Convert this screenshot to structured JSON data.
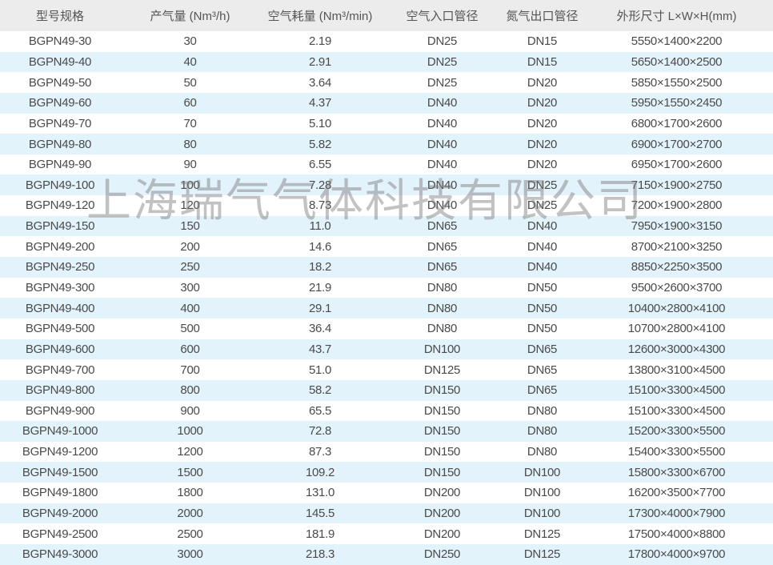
{
  "headers": [
    "型号规格",
    "产气量 (Nm³/h)",
    "空气耗量 (Nm³/min)",
    "空气入口管径",
    "氮气出口管径",
    "外形尺寸 L×W×H(mm)"
  ],
  "rows": [
    [
      "BGPN49-30",
      "30",
      "2.19",
      "DN25",
      "DN15",
      "5550×1400×2200"
    ],
    [
      "BGPN49-40",
      "40",
      "2.91",
      "DN25",
      "DN15",
      "5650×1400×2500"
    ],
    [
      "BGPN49-50",
      "50",
      "3.64",
      "DN25",
      "DN20",
      "5850×1550×2500"
    ],
    [
      "BGPN49-60",
      "60",
      "4.37",
      "DN40",
      "DN20",
      "5950×1550×2450"
    ],
    [
      "BGPN49-70",
      "70",
      "5.10",
      "DN40",
      "DN20",
      "6800×1700×2600"
    ],
    [
      "BGPN49-80",
      "80",
      "5.82",
      "DN40",
      "DN20",
      "6900×1700×2700"
    ],
    [
      "BGPN49-90",
      "90",
      "6.55",
      "DN40",
      "DN20",
      "6950×1700×2600"
    ],
    [
      "BGPN49-100",
      "100",
      "7.28",
      "DN40",
      "DN25",
      "7150×1900×2750"
    ],
    [
      "BGPN49-120",
      "120",
      "8.73",
      "DN40",
      "DN25",
      "7200×1900×2800"
    ],
    [
      "BGPN49-150",
      "150",
      "11.0",
      "DN65",
      "DN40",
      "7950×1900×3150"
    ],
    [
      "BGPN49-200",
      "200",
      "14.6",
      "DN65",
      "DN40",
      "8700×2100×3250"
    ],
    [
      "BGPN49-250",
      "250",
      "18.2",
      "DN65",
      "DN40",
      "8850×2250×3500"
    ],
    [
      "BGPN49-300",
      "300",
      "21.9",
      "DN80",
      "DN50",
      "9500×2600×3700"
    ],
    [
      "BGPN49-400",
      "400",
      "29.1",
      "DN80",
      "DN50",
      "10400×2800×4100"
    ],
    [
      "BGPN49-500",
      "500",
      "36.4",
      "DN80",
      "DN50",
      "10700×2800×4100"
    ],
    [
      "BGPN49-600",
      "600",
      "43.7",
      "DN100",
      "DN65",
      "12600×3000×4300"
    ],
    [
      "BGPN49-700",
      "700",
      "51.0",
      "DN125",
      "DN65",
      "13800×3100×4500"
    ],
    [
      "BGPN49-800",
      "800",
      "58.2",
      "DN150",
      "DN65",
      "15100×3300×4500"
    ],
    [
      "BGPN49-900",
      "900",
      "65.5",
      "DN150",
      "DN80",
      "15100×3300×4500"
    ],
    [
      "BGPN49-1000",
      "1000",
      "72.8",
      "DN150",
      "DN80",
      "15200×3300×5500"
    ],
    [
      "BGPN49-1200",
      "1200",
      "87.3",
      "DN150",
      "DN80",
      "15400×3300×5500"
    ],
    [
      "BGPN49-1500",
      "1500",
      "109.2",
      "DN150",
      "DN100",
      "15800×3300×6700"
    ],
    [
      "BGPN49-1800",
      "1800",
      "131.0",
      "DN200",
      "DN100",
      "16200×3500×7700"
    ],
    [
      "BGPN49-2000",
      "2000",
      "145.5",
      "DN200",
      "DN100",
      "17300×4000×7900"
    ],
    [
      "BGPN49-2500",
      "2500",
      "181.9",
      "DN200",
      "DN125",
      "17500×4000×8800"
    ],
    [
      "BGPN49-3000",
      "3000",
      "218.3",
      "DN250",
      "DN125",
      "17800×4000×9700"
    ]
  ],
  "watermark": "上海瑞气气体科技有限公司",
  "colors": {
    "header_bg": "#ececec",
    "alt_row_bg": "#e3f3fb",
    "text": "#4a4a4a"
  }
}
